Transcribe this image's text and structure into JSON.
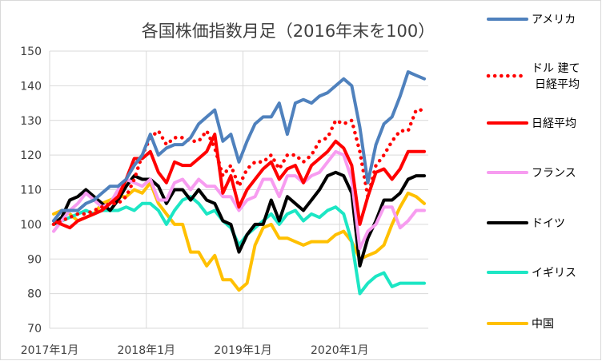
{
  "chart_data": {
    "type": "line",
    "title": "各国株価指数月足（2016年末を100）",
    "xlabel": "",
    "ylabel": "",
    "ylim": [
      70,
      150
    ],
    "yticks": [
      70,
      80,
      90,
      100,
      110,
      120,
      130,
      140,
      150
    ],
    "x_tick_labels": [
      "2017年1月",
      "2018年1月",
      "2019年1月",
      "2020年1月"
    ],
    "months": [
      "2017-01",
      "2017-02",
      "2017-03",
      "2017-04",
      "2017-05",
      "2017-06",
      "2017-07",
      "2017-08",
      "2017-09",
      "2017-10",
      "2017-11",
      "2017-12",
      "2018-01",
      "2018-02",
      "2018-03",
      "2018-04",
      "2018-05",
      "2018-06",
      "2018-07",
      "2018-08",
      "2018-09",
      "2018-10",
      "2018-11",
      "2018-12",
      "2019-01",
      "2019-02",
      "2019-03",
      "2019-04",
      "2019-05",
      "2019-06",
      "2019-07",
      "2019-08",
      "2019-09",
      "2019-10",
      "2019-11",
      "2019-12",
      "2020-01",
      "2020-02",
      "2020-03",
      "2020-04",
      "2020-05",
      "2020-06",
      "2020-07",
      "2020-08",
      "2020-09",
      "2020-10",
      "2020-11"
    ],
    "grid": true,
    "legend_position": "right",
    "series": [
      {
        "name": "アメリカ",
        "color": "#4f81bd",
        "dash": "solid",
        "values": [
          101,
          104,
          104,
          104,
          106,
          107,
          109,
          111,
          111,
          113,
          117,
          120,
          126,
          120,
          122,
          123,
          123,
          125,
          129,
          131,
          133,
          124,
          126,
          118,
          124,
          129,
          131,
          131,
          135,
          126,
          135,
          136,
          135,
          137,
          138,
          140,
          142,
          140,
          128,
          112,
          123,
          129,
          131,
          137,
          144,
          143,
          142
        ]
      },
      {
        "name": "ドル 建て\n日経平均",
        "color": "#ff0000",
        "dash": "dotted",
        "values": [
          100,
          101,
          102,
          103,
          103,
          104,
          105,
          106,
          106,
          108,
          113,
          120,
          125,
          127,
          123,
          125,
          125,
          124,
          124,
          127,
          122,
          114,
          117,
          111,
          116,
          118,
          118,
          120,
          116,
          120,
          120,
          118,
          120,
          124,
          125,
          130,
          129,
          130,
          121,
          108,
          117,
          120,
          124,
          127,
          127,
          133,
          133
        ]
      },
      {
        "name": "日経平均",
        "color": "#ff0000",
        "dash": "solid",
        "values": [
          101,
          100,
          99,
          101,
          102,
          103,
          104,
          106,
          108,
          113,
          119,
          119,
          121,
          115,
          112,
          118,
          117,
          117,
          119,
          121,
          126,
          109,
          114,
          105,
          110,
          113,
          116,
          118,
          113,
          116,
          117,
          112,
          117,
          119,
          121,
          124,
          122,
          117,
          100,
          108,
          115,
          116,
          113,
          116,
          121,
          121,
          121
        ]
      },
      {
        "name": "フランス",
        "color": "#f79cf0",
        "dash": "solid",
        "values": [
          98,
          101,
          104,
          106,
          109,
          107,
          105,
          106,
          110,
          113,
          112,
          111,
          113,
          107,
          107,
          112,
          113,
          110,
          113,
          111,
          111,
          108,
          108,
          104,
          107,
          108,
          113,
          113,
          108,
          114,
          114,
          112,
          114,
          115,
          118,
          121,
          120,
          113,
          93,
          98,
          100,
          105,
          105,
          99,
          101,
          104,
          104
        ]
      },
      {
        "name": "ドイツ",
        "color": "#000000",
        "dash": "solid",
        "values": [
          100,
          102,
          107,
          108,
          110,
          108,
          106,
          104,
          107,
          111,
          114,
          113,
          113,
          111,
          106,
          110,
          110,
          107,
          110,
          107,
          106,
          101,
          100,
          92,
          97,
          100,
          100,
          107,
          101,
          108,
          106,
          104,
          107,
          110,
          114,
          115,
          114,
          109,
          88,
          96,
          101,
          107,
          107,
          109,
          113,
          114,
          114
        ]
      },
      {
        "name": "イギリス",
        "color": "#1ce6c4",
        "dash": "solid",
        "values": [
          100,
          101,
          102,
          103,
          104,
          103,
          104,
          104,
          104,
          105,
          104,
          106,
          106,
          104,
          100,
          104,
          107,
          108,
          106,
          103,
          104,
          101,
          99,
          94,
          97,
          99,
          101,
          103,
          100,
          103,
          104,
          101,
          103,
          102,
          104,
          105,
          103,
          95,
          80,
          83,
          85,
          86,
          82,
          83,
          83,
          83,
          83
        ]
      },
      {
        "name": "中国",
        "color": "#ffc000",
        "dash": "solid",
        "values": [
          103,
          104,
          103,
          101,
          102,
          103,
          106,
          107,
          108,
          108,
          110,
          109,
          112,
          106,
          103,
          100,
          100,
          92,
          92,
          88,
          91,
          84,
          84,
          81,
          83,
          94,
          99,
          100,
          96,
          96,
          95,
          94,
          95,
          95,
          95,
          97,
          98,
          95,
          90,
          91,
          92,
          94,
          100,
          105,
          109,
          108,
          106
        ]
      }
    ]
  }
}
